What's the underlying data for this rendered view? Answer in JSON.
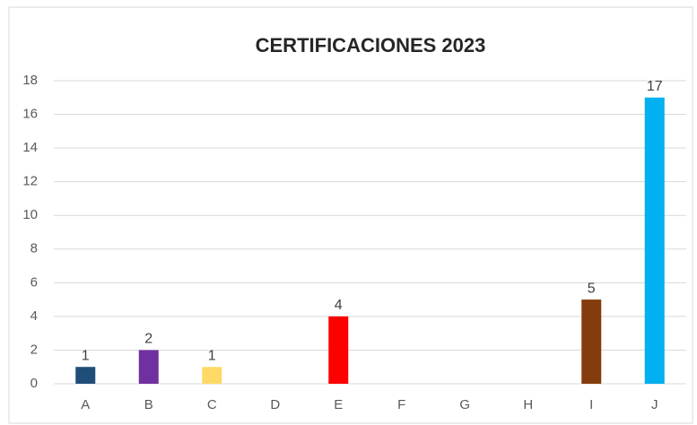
{
  "chart_data": {
    "type": "bar",
    "title": "CERTIFICACIONES 2023",
    "categories": [
      "A",
      "B",
      "C",
      "D",
      "E",
      "F",
      "G",
      "H",
      "I",
      "J"
    ],
    "values": [
      1,
      2,
      1,
      null,
      4,
      null,
      null,
      null,
      5,
      17
    ],
    "colors": [
      "#1f4e79",
      "#7030a0",
      "#ffd966",
      null,
      "#ff0000",
      null,
      null,
      null,
      "#843c0c",
      "#00b0f0"
    ],
    "ylim": [
      0,
      18
    ],
    "yticks": [
      0,
      2,
      4,
      6,
      8,
      10,
      12,
      14,
      16,
      18
    ],
    "grid": true,
    "data_labels": true
  }
}
